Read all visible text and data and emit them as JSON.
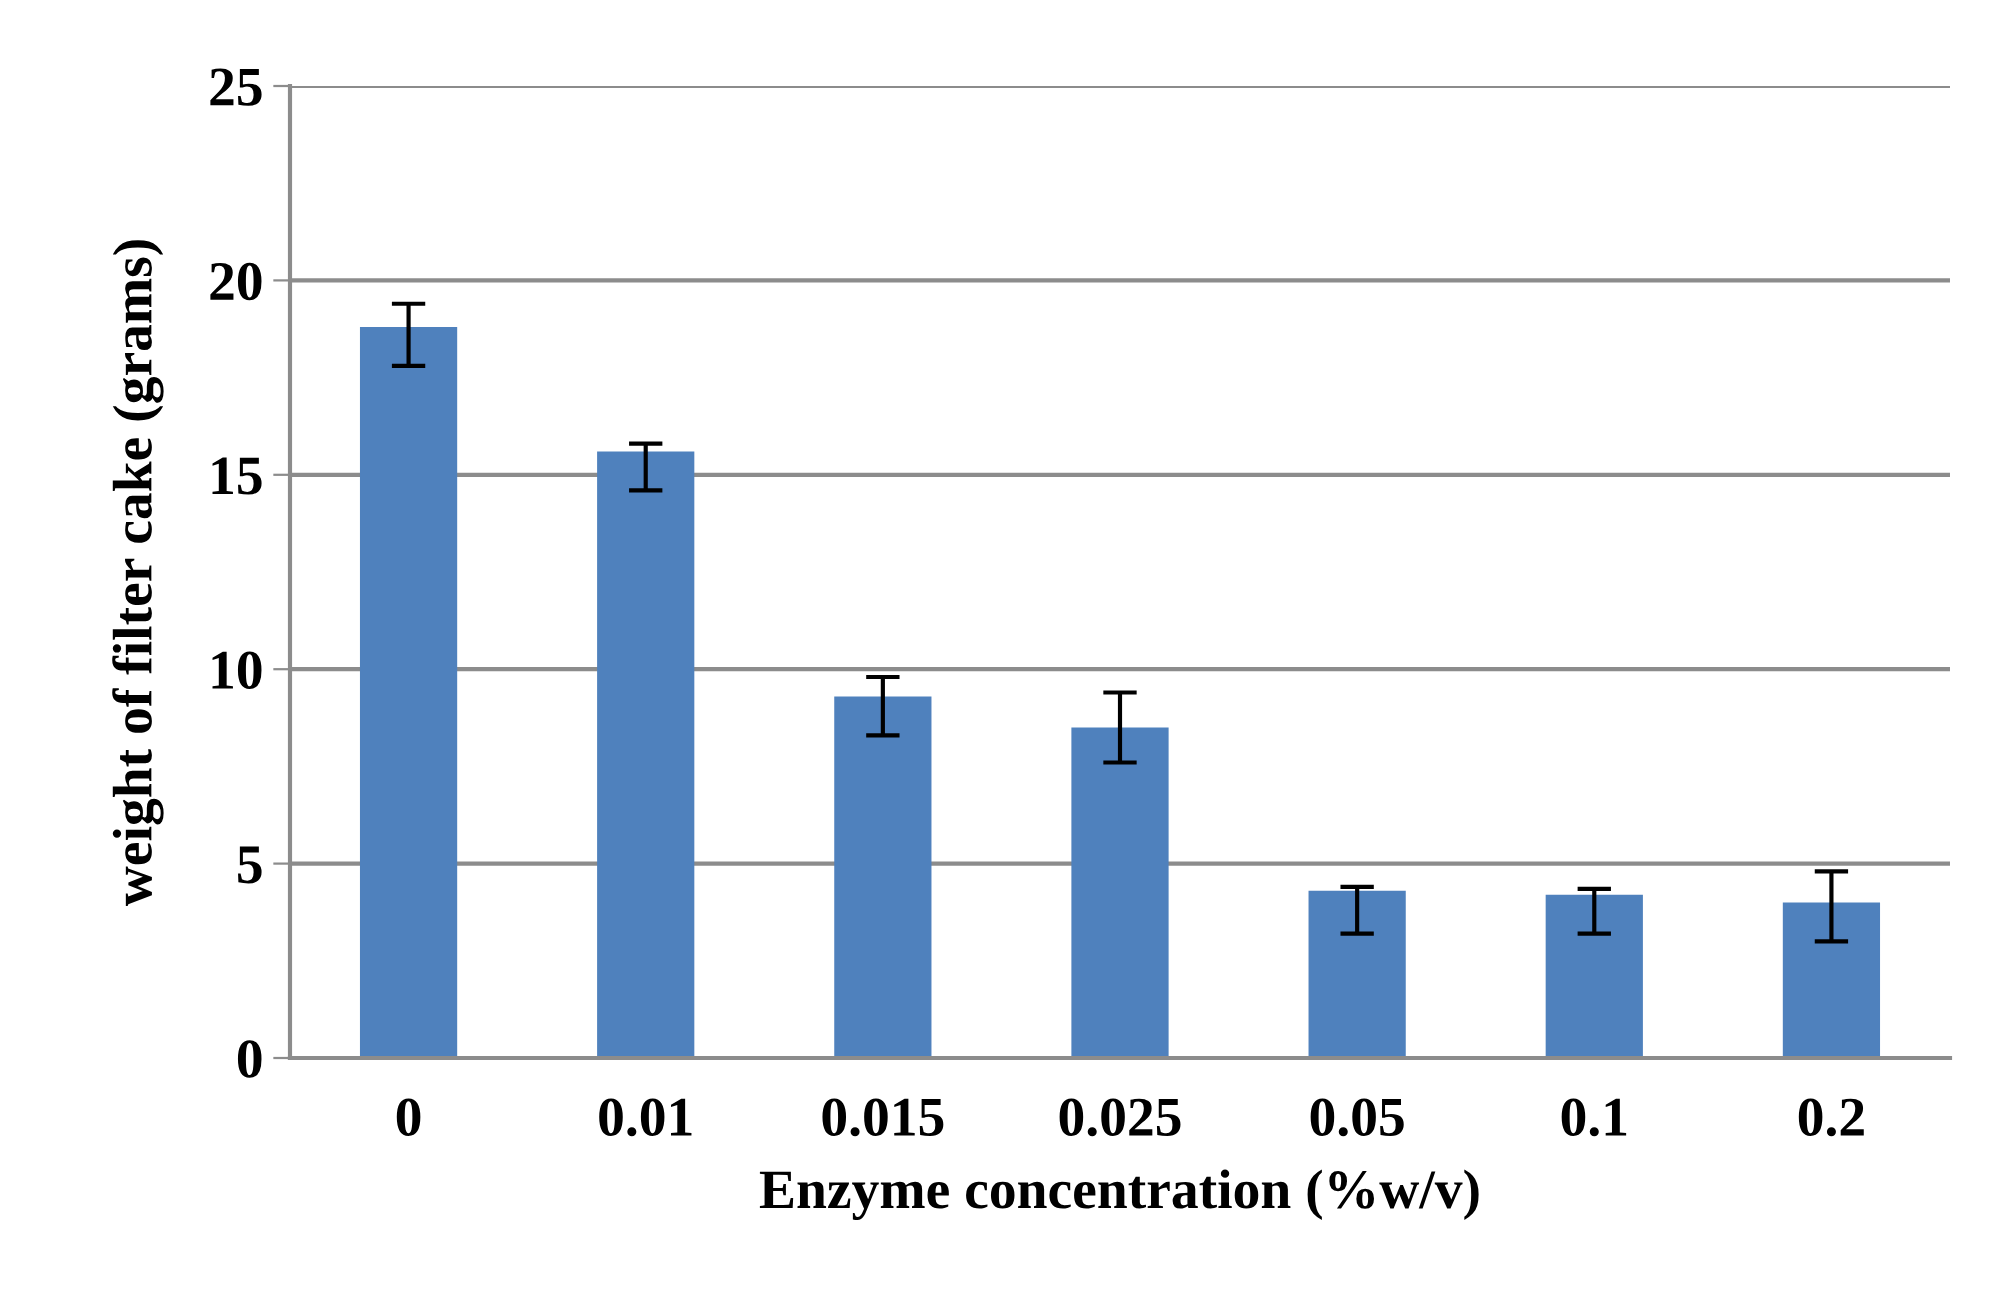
{
  "chart_data": {
    "type": "bar",
    "xlabel": "Enzyme concentration (%w/v)",
    "ylabel": "weight of filter cake (grams)",
    "categories": [
      "0",
      "0.01",
      "0.015",
      "0.025",
      "0.05",
      "0.1",
      "0.2"
    ],
    "values": [
      18.8,
      15.6,
      9.3,
      8.5,
      4.3,
      4.2,
      4.0
    ],
    "errors": [
      [
        17.8,
        19.4
      ],
      [
        14.6,
        15.8
      ],
      [
        8.3,
        9.8
      ],
      [
        7.6,
        9.4
      ],
      [
        3.2,
        4.4
      ],
      [
        3.2,
        4.35
      ],
      [
        3.0,
        4.8
      ]
    ],
    "color": "#4f81bd",
    "ylim": [
      0,
      25
    ],
    "yticks": [
      0,
      5,
      10,
      15,
      20,
      25
    ],
    "grid": "y"
  }
}
